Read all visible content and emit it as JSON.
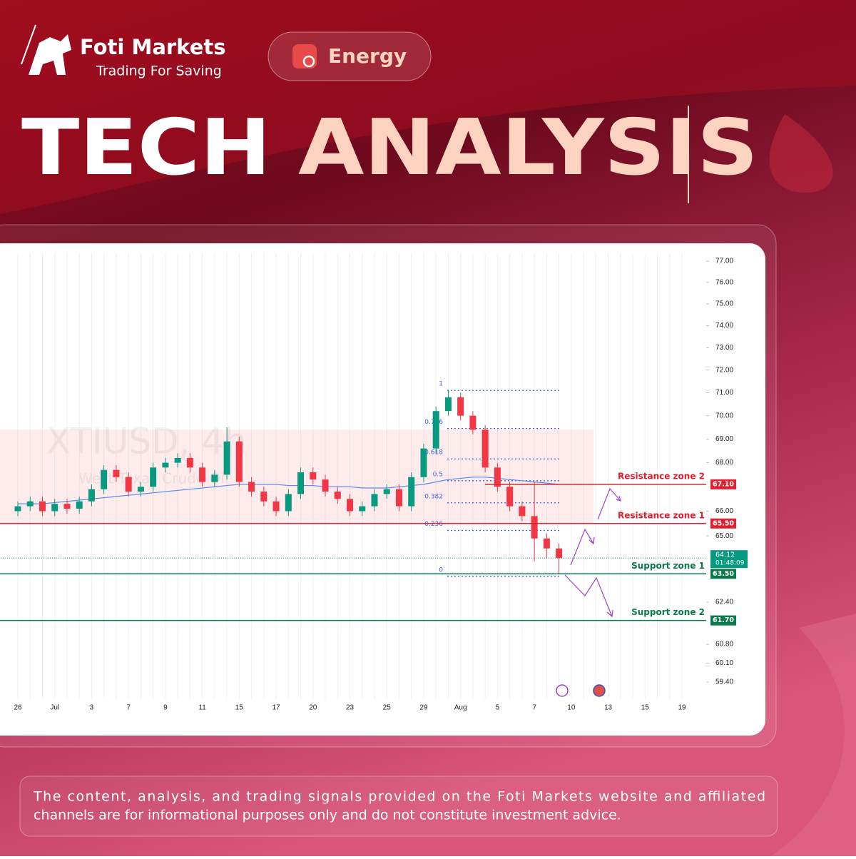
{
  "header": {
    "brand": "Foti Markets",
    "tagline": "Trading For Saving",
    "category": "Energy",
    "title_part1": "TECH",
    "title_part2": "ANALYSIS"
  },
  "chart_data": {
    "type": "candlestick",
    "watermark_title": "XTIUSD, 4h",
    "watermark_subtitle": "West Texas Crude Oil",
    "categories": [
      "26",
      null,
      null,
      "Jul",
      null,
      null,
      "3",
      null,
      null,
      "7",
      null,
      null,
      "9",
      null,
      null,
      "11",
      null,
      null,
      "15",
      null,
      null,
      "17",
      null,
      null,
      "20",
      null,
      null,
      "23",
      null,
      null,
      "25",
      null,
      null,
      "29",
      null,
      null,
      "Aug",
      null,
      null,
      "5",
      null,
      null,
      "7",
      null,
      null,
      "10",
      null,
      null,
      "13",
      null,
      null,
      "15",
      null,
      null,
      "19"
    ],
    "open": [
      66.0,
      66.2,
      66.4,
      66.0,
      66.3,
      66.1,
      66.4,
      66.9,
      67.7,
      67.4,
      66.8,
      67.0,
      67.8,
      68.0,
      68.2,
      67.8,
      67.2,
      67.5,
      68.9,
      67.2,
      66.8,
      66.4,
      66.0,
      66.7,
      67.6,
      67.3,
      66.8,
      66.5,
      66.0,
      66.2,
      66.7,
      66.9,
      66.2,
      67.4,
      68.6,
      70.2,
      70.8,
      70.0,
      69.4,
      67.8,
      67.0,
      66.2,
      65.8,
      64.9,
      64.5,
      null,
      null,
      null,
      null,
      null,
      null,
      null,
      null,
      null,
      null
    ],
    "high": [
      66.4,
      66.6,
      66.6,
      66.5,
      66.5,
      66.6,
      67.1,
      67.9,
      67.9,
      67.6,
      67.2,
      68.0,
      68.2,
      68.4,
      68.4,
      68.0,
      67.7,
      69.5,
      69.1,
      67.4,
      67.0,
      66.6,
      66.9,
      67.8,
      67.8,
      67.5,
      67.0,
      66.7,
      66.4,
      66.9,
      67.1,
      67.1,
      67.6,
      68.8,
      70.4,
      71.1,
      71.0,
      70.2,
      69.6,
      68.0,
      67.2,
      66.4,
      67.2,
      65.1,
      64.7,
      null,
      null,
      null,
      null,
      null,
      null,
      null,
      null,
      null,
      null
    ],
    "low": [
      65.8,
      66.0,
      65.8,
      65.8,
      65.9,
      65.9,
      66.2,
      66.7,
      67.2,
      66.6,
      66.6,
      66.8,
      67.6,
      67.8,
      67.6,
      67.0,
      67.0,
      67.3,
      67.0,
      66.6,
      66.2,
      65.8,
      65.8,
      66.5,
      67.1,
      66.6,
      66.3,
      65.8,
      65.8,
      66.0,
      66.5,
      66.0,
      66.0,
      67.2,
      68.4,
      70.0,
      69.8,
      69.2,
      67.6,
      66.8,
      66.0,
      65.6,
      64.0,
      64.1,
      63.5,
      null,
      null,
      null,
      null,
      null,
      null,
      null,
      null,
      null,
      null
    ],
    "close": [
      66.2,
      66.4,
      66.0,
      66.3,
      66.1,
      66.4,
      66.9,
      67.7,
      67.4,
      66.8,
      67.0,
      67.8,
      68.0,
      68.2,
      67.8,
      67.2,
      67.5,
      68.9,
      67.2,
      66.8,
      66.4,
      66.0,
      66.7,
      67.6,
      67.3,
      66.8,
      66.5,
      66.0,
      66.2,
      66.7,
      66.9,
      66.2,
      67.4,
      68.6,
      70.2,
      70.8,
      70.0,
      69.4,
      67.8,
      67.0,
      66.2,
      65.8,
      64.9,
      64.5,
      64.12,
      null,
      null,
      null,
      null,
      null,
      null,
      null,
      null,
      null,
      null
    ],
    "up_color": "#089981",
    "down_color": "#f23645",
    "moving_average": {
      "color": "#5b8def",
      "values": [
        66.3,
        66.3,
        66.3,
        66.35,
        66.4,
        66.45,
        66.5,
        66.55,
        66.6,
        66.65,
        66.7,
        66.75,
        66.8,
        66.85,
        66.9,
        66.95,
        67.0,
        67.05,
        67.1,
        67.1,
        67.1,
        67.1,
        67.05,
        67.05,
        67.05,
        67.0,
        67.0,
        67.0,
        66.95,
        66.95,
        66.95,
        67.0,
        67.05,
        67.1,
        67.2,
        67.3,
        67.35,
        67.4,
        67.4,
        67.35,
        67.3,
        67.25,
        67.2,
        67.15,
        67.1,
        null,
        null,
        null,
        null,
        null,
        null,
        null,
        null,
        null,
        null
      ]
    },
    "log_scale": true,
    "ylim": [
      59.4,
      77
    ],
    "yticks": [
      {
        "value": 77,
        "label": "77.00"
      },
      {
        "value": 76,
        "label": "76.00"
      },
      {
        "value": 75,
        "label": "75.00"
      },
      {
        "value": 74,
        "label": "74.00"
      },
      {
        "value": 73,
        "label": "73.00"
      },
      {
        "value": 72,
        "label": "72.00"
      },
      {
        "value": 71,
        "label": "71.00"
      },
      {
        "value": 70,
        "label": "70.00"
      },
      {
        "value": 69,
        "label": "69.00"
      },
      {
        "value": 68,
        "label": "68.00"
      },
      {
        "value": 66,
        "label": "66.00"
      },
      {
        "value": 65,
        "label": "65.00"
      },
      {
        "value": 62.4,
        "label": "62.40"
      },
      {
        "value": 60.8,
        "label": "60.80"
      },
      {
        "value": 60.1,
        "label": "60.10"
      },
      {
        "value": 59.4,
        "label": "59.40"
      }
    ],
    "shaded_range": [
      65.5,
      69.4
    ],
    "levels": [
      {
        "name": "Resistance zone 2",
        "value": 67.1,
        "label": "67.10",
        "color": "#e0202f"
      },
      {
        "name": "Resistance zone 1",
        "value": 65.5,
        "label": "65.50",
        "color": "#e0202f"
      },
      {
        "name": "Support zone 1",
        "value": 63.5,
        "label": "63.50",
        "color": "#0b7a4b"
      },
      {
        "name": "Support zone 2",
        "value": 61.7,
        "label": "61.70",
        "color": "#0b7a4b"
      }
    ],
    "last_price": {
      "value": 64.12,
      "countdown": "01:48:09",
      "color": "#089981"
    },
    "fib_color": "#3d63dd",
    "fib_levels": [
      {
        "ratio": 1,
        "price": 71.1
      },
      {
        "ratio": 0.786,
        "price": 69.45
      },
      {
        "ratio": 0.618,
        "price": 68.16
      },
      {
        "ratio": 0.5,
        "price": 67.25
      },
      {
        "ratio": 0.382,
        "price": 66.34
      },
      {
        "ratio": 0.236,
        "price": 65.22
      },
      {
        "ratio": 0,
        "price": 63.4
      }
    ]
  },
  "disclaimer": [
    "The content, analysis, and trading signals provided on the Foti Markets website and affiliated",
    "channels are for informational purposes only and do not constitute investment advice."
  ]
}
